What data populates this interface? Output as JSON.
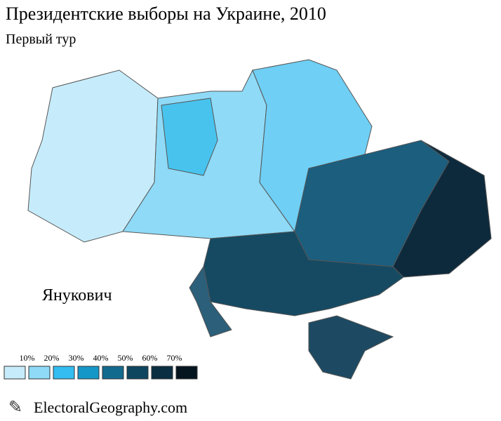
{
  "header": {
    "title": "Президентские выборы на Украине, 2010",
    "subtitle": "Первый тур"
  },
  "map": {
    "candidate": "Янукович"
  },
  "legend": {
    "labels": [
      "10%",
      "20%",
      "30%",
      "40%",
      "50%",
      "60%",
      "70%"
    ],
    "colors": [
      "#c6ecfb",
      "#8fdaf6",
      "#33bdf0",
      "#1597c8",
      "#136a8f",
      "#0e4660",
      "#0a2f42",
      "#051520"
    ]
  },
  "footer": {
    "site": "ElectoralGeography.com"
  }
}
